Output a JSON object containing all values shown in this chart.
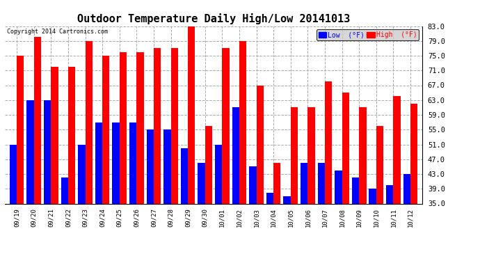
{
  "title": "Outdoor Temperature Daily High/Low 20141013",
  "copyright": "Copyright 2014 Cartronics.com",
  "legend_low": "Low  (°F)",
  "legend_high": "High  (°F)",
  "dates": [
    "09/19",
    "09/20",
    "09/21",
    "09/22",
    "09/23",
    "09/24",
    "09/25",
    "09/26",
    "09/27",
    "09/28",
    "09/29",
    "09/30",
    "10/01",
    "10/02",
    "10/03",
    "10/04",
    "10/05",
    "10/06",
    "10/07",
    "10/08",
    "10/09",
    "10/10",
    "10/11",
    "10/12"
  ],
  "highs": [
    75,
    80,
    72,
    72,
    79,
    75,
    76,
    76,
    77,
    77,
    84,
    56,
    77,
    79,
    67,
    46,
    61,
    61,
    68,
    65,
    61,
    56,
    64,
    62
  ],
  "lows": [
    51,
    63,
    63,
    42,
    51,
    57,
    57,
    57,
    55,
    55,
    50,
    46,
    51,
    61,
    45,
    38,
    37,
    46,
    46,
    44,
    42,
    39,
    40,
    43
  ],
  "ylim_min": 35.0,
  "ylim_max": 83.0,
  "yticks": [
    35.0,
    39.0,
    43.0,
    47.0,
    51.0,
    55.0,
    59.0,
    63.0,
    67.0,
    71.0,
    75.0,
    79.0,
    83.0
  ],
  "color_high": "#ff0000",
  "color_low": "#0000ff",
  "bg_color": "#ffffff",
  "grid_color": "#aaaaaa",
  "title_fontsize": 11,
  "bar_width": 0.42,
  "figwidth": 6.9,
  "figheight": 3.75,
  "dpi": 100
}
